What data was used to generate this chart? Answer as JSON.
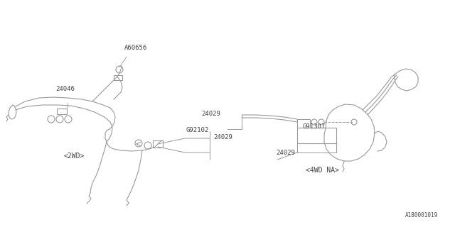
{
  "bg_color": "#ffffff",
  "line_color": "#999999",
  "text_color": "#444444",
  "fig_width": 6.4,
  "fig_height": 3.2,
  "labels": {
    "part_24046": "24046",
    "part_A60656": "A60656",
    "part_G92102": "G92102",
    "part_24029_left": "24029",
    "part_2WD": "<2WD>",
    "part_G91307": "G91307",
    "part_24029_right": "24029",
    "part_24029_far_left": "24029",
    "part_4WD": "<4WD NA>",
    "part_number": "A180001019"
  }
}
